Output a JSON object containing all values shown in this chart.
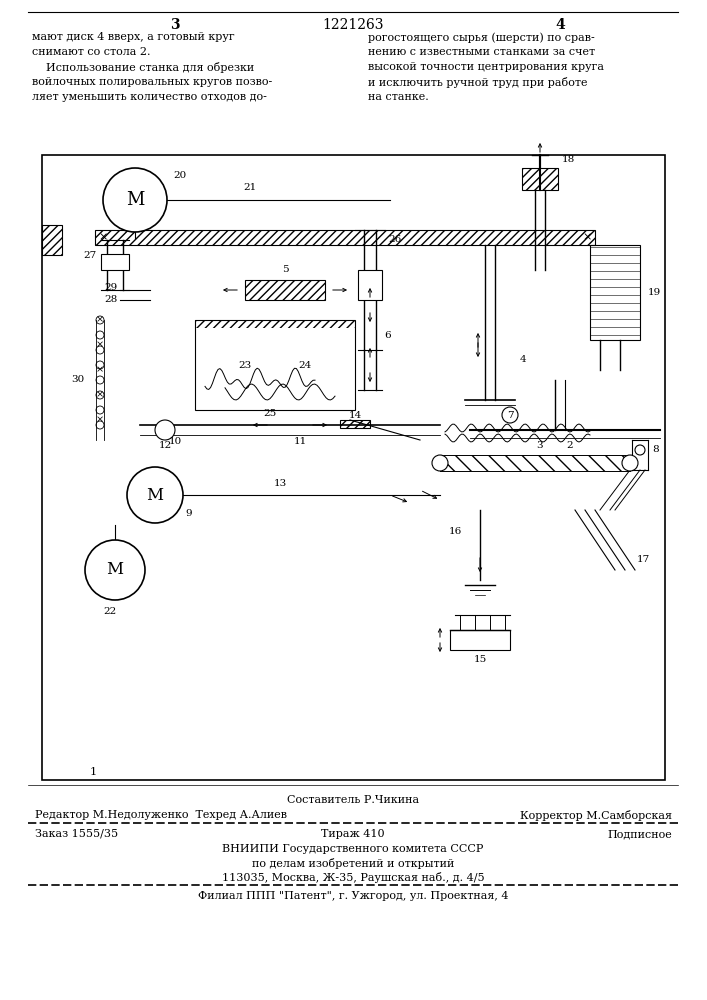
{
  "bg_color": "#ffffff",
  "header": {
    "page_left": "3",
    "patent_num": "1221263",
    "page_right": "4"
  },
  "col_left_text": [
    "мают диск 4 вверх, а готовый круг",
    "снимают со стола 2.",
    "    Использование станка для обрезки",
    "войлочных полировальных кругов позво-",
    "ляет уменьшить количество отходов до-"
  ],
  "col_right_text": [
    "рогостоящего сырья (шерсти) по срав-",
    "нению с известными станками за счет",
    "высокой точности центрирования круга",
    "и исключить ручной труд при работе",
    "на станке."
  ],
  "footer_line1": "Составитель Р.Чикина",
  "footer_line2_left": "Редактор М.Недолуженко  Техред А.Алиев",
  "footer_line2_right": "Корректор М.Самборская",
  "footer_line3_left": "Заказ 1555/35",
  "footer_line3_mid": "Тираж 410",
  "footer_line3_right": "Подписное",
  "footer_line4": "ВНИИПИ Государственного комитета СССР",
  "footer_line5": "по делам изобретений и открытий",
  "footer_line6": "113035, Москва, Ж-35, Раушская наб., д. 4/5",
  "footer_line7": "Филиал ППП \"Патент\", г. Ужгород, ул. Проектная, 4"
}
